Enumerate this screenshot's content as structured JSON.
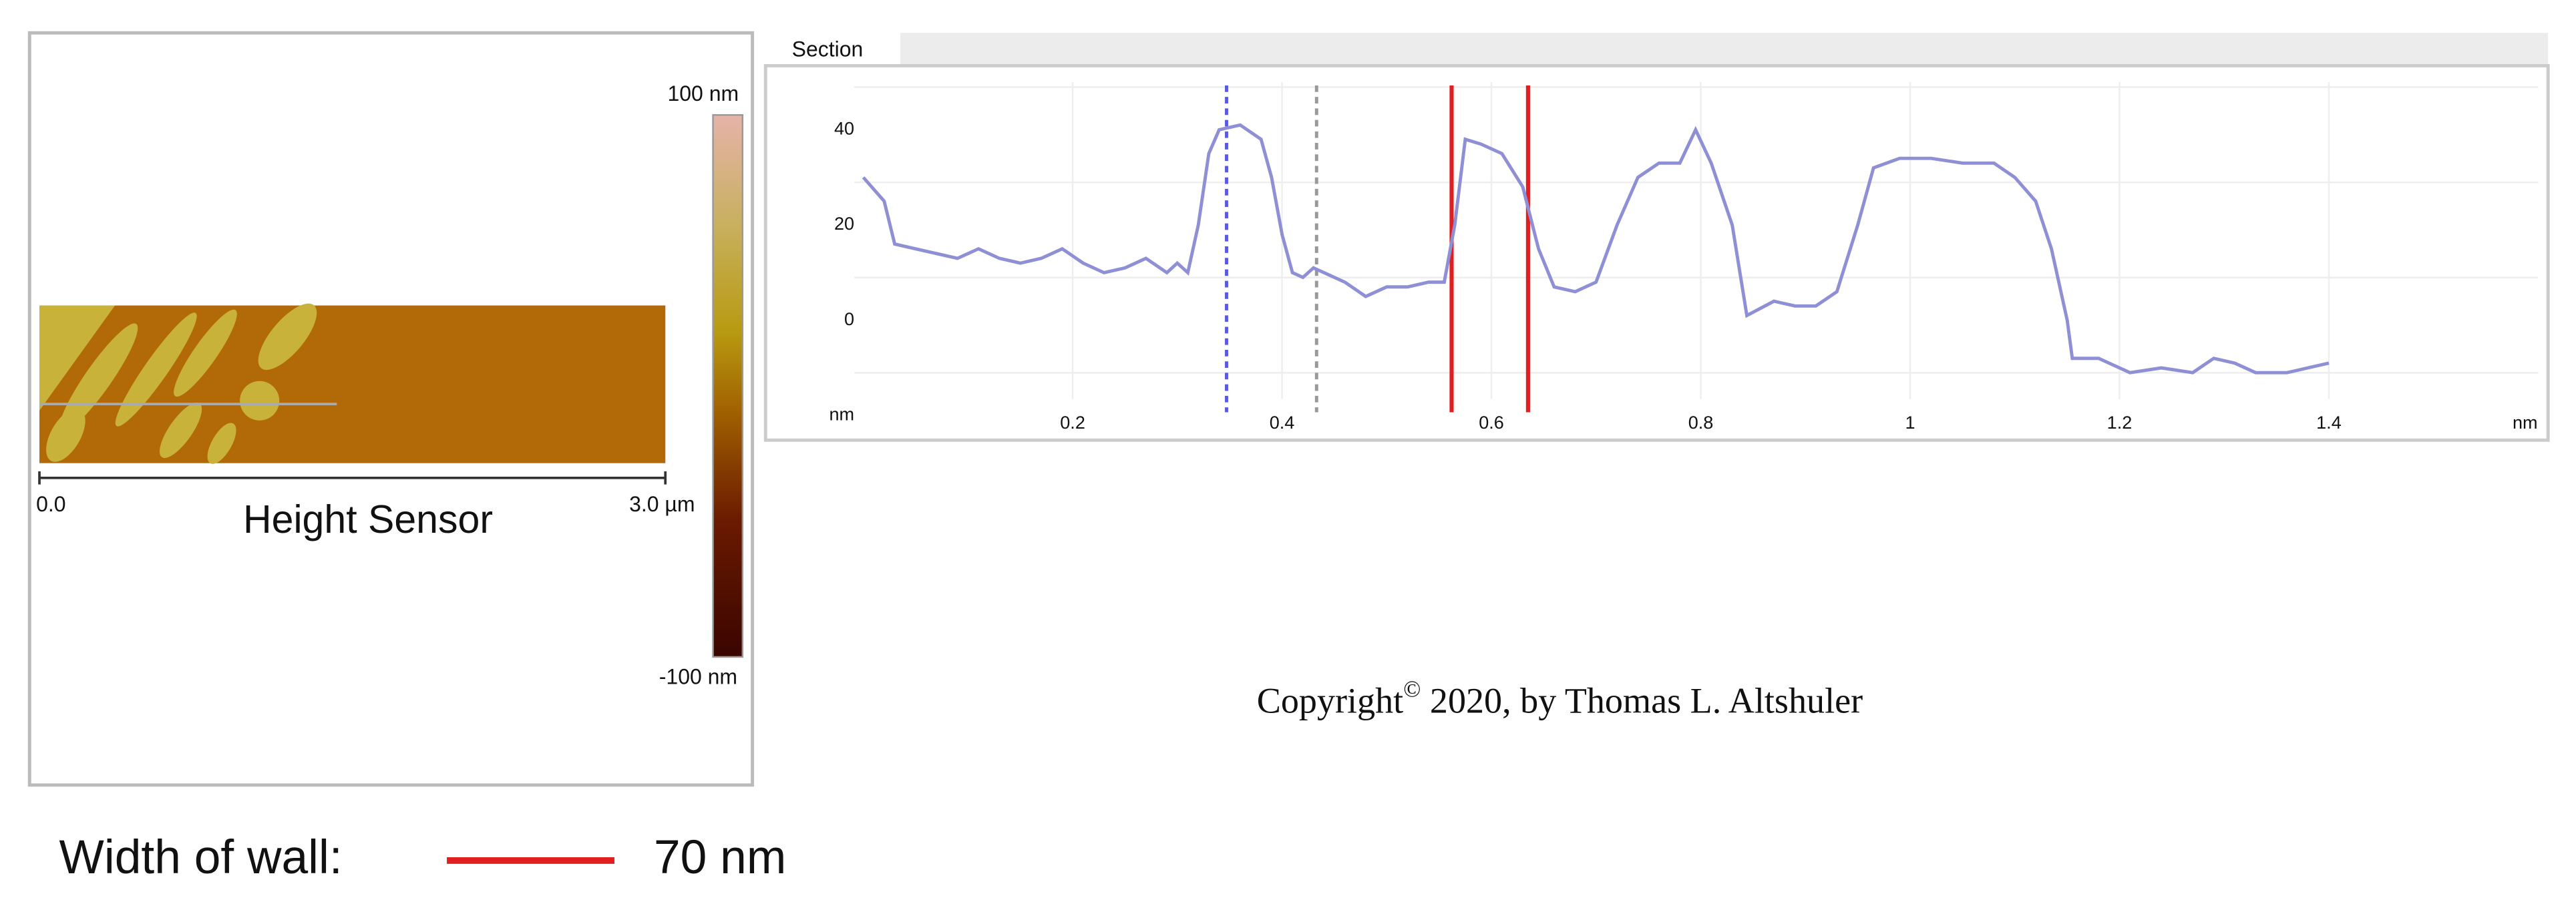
{
  "height_image": {
    "scale_max": "100 nm",
    "scale_min": "-100 nm",
    "x_start": "0.0",
    "x_end": "3.0 µm",
    "label": "Height Sensor"
  },
  "section_tab": "Section",
  "chart_data": {
    "type": "line",
    "x": [
      0.0,
      0.02,
      0.03,
      0.05,
      0.07,
      0.09,
      0.11,
      0.13,
      0.15,
      0.17,
      0.19,
      0.21,
      0.23,
      0.25,
      0.27,
      0.29,
      0.3,
      0.31,
      0.32,
      0.33,
      0.34,
      0.36,
      0.38,
      0.39,
      0.4,
      0.41,
      0.42,
      0.43,
      0.44,
      0.46,
      0.48,
      0.5,
      0.52,
      0.54,
      0.555,
      0.565,
      0.575,
      0.59,
      0.61,
      0.63,
      0.645,
      0.66,
      0.68,
      0.7,
      0.72,
      0.74,
      0.76,
      0.78,
      0.795,
      0.81,
      0.83,
      0.844,
      0.87,
      0.89,
      0.91,
      0.93,
      0.95,
      0.965,
      0.99,
      1.02,
      1.05,
      1.08,
      1.1,
      1.12,
      1.135,
      1.15,
      1.155,
      1.18,
      1.21,
      1.24,
      1.27,
      1.29,
      1.31,
      1.33,
      1.36,
      1.38,
      1.4
    ],
    "values": [
      30,
      25,
      16,
      15,
      14,
      13,
      15,
      13,
      12,
      13,
      15,
      12,
      10,
      11,
      13,
      10,
      12,
      10,
      20,
      35,
      40,
      41,
      38,
      30,
      18,
      10,
      9,
      11,
      10,
      8,
      5,
      7,
      7,
      8,
      8,
      20,
      38,
      37,
      35,
      28,
      15,
      7,
      6,
      8,
      20,
      30,
      33,
      33,
      40,
      33,
      20,
      1,
      4,
      3,
      3,
      6,
      20,
      32,
      34,
      34,
      33,
      33,
      30,
      25,
      15,
      0,
      -8,
      -8,
      -11,
      -10,
      -11,
      -8,
      -9,
      -11,
      -11,
      -10,
      -9
    ],
    "color": "#8f8fd6",
    "xlim": [
      -0.04,
      1.6
    ],
    "ylim": [
      -20,
      50
    ],
    "xticks": [
      0.2,
      0.4,
      0.6,
      0.8,
      1.0,
      1.2,
      1.4
    ],
    "yticks": [
      {
        "value": -20,
        "label": "nm"
      },
      0,
      20,
      40
    ],
    "x_label": "nm",
    "grid": true,
    "cursors": [
      {
        "x": 0.347,
        "color": "#5a5ae0",
        "dashed": true
      },
      {
        "x": 0.433,
        "color": "#999999",
        "dashed": true
      },
      {
        "x": 0.562,
        "color": "#e02020",
        "dashed": false
      },
      {
        "x": 0.635,
        "color": "#e02020",
        "dashed": false
      }
    ]
  },
  "copyright": {
    "text": "Copyright",
    "symbol": "©",
    "rest": " 2020, by Thomas  L. Altshuler"
  },
  "legend": {
    "label": "Width of wall:",
    "value": "70 nm",
    "color": "#e02020"
  }
}
